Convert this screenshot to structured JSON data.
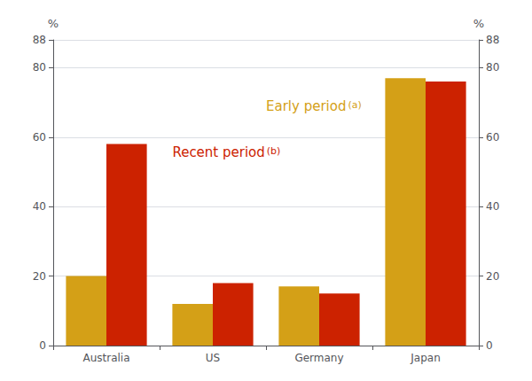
{
  "chart_data": {
    "type": "bar",
    "categories": [
      "Australia",
      "US",
      "Germany",
      "Japan"
    ],
    "series": [
      {
        "name": "Early period",
        "color": "#D4A017",
        "values": [
          20,
          12,
          17,
          77
        ]
      },
      {
        "name": "Recent period",
        "color": "#CC2200",
        "values": [
          58,
          18,
          15,
          76
        ]
      }
    ],
    "annotations": [
      "(a)",
      "(b)"
    ],
    "ylabel": "%",
    "y2label": "%",
    "ylim": [
      0,
      88
    ],
    "yticks": [
      0,
      20,
      40,
      60,
      80
    ],
    "y2lim": [
      0,
      88
    ],
    "y2ticks": [
      0,
      20,
      40,
      60,
      80
    ],
    "grid": true
  }
}
